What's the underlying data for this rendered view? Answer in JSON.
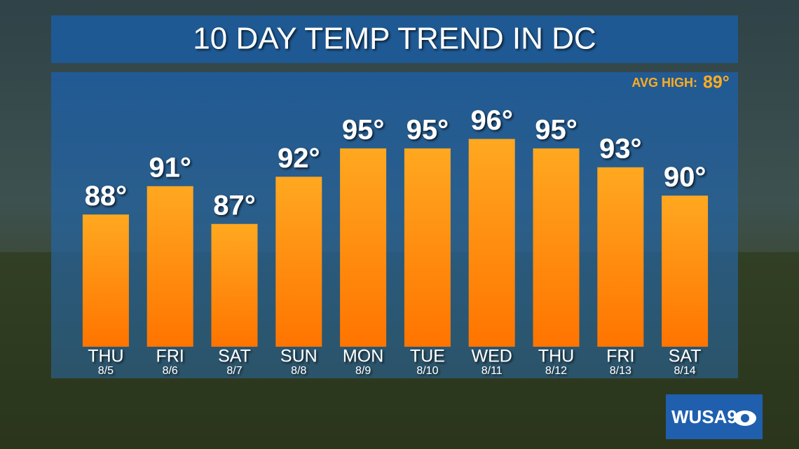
{
  "chart_data": {
    "type": "bar",
    "title": "10 DAY TEMP TREND IN DC",
    "annotation_label": "AVG HIGH:",
    "annotation_value_label": "89°",
    "categories": [
      "THU",
      "FRI",
      "SAT",
      "SUN",
      "MON",
      "TUE",
      "WED",
      "THU",
      "FRI",
      "SAT"
    ],
    "dates": [
      "8/5",
      "8/6",
      "8/7",
      "8/8",
      "8/9",
      "8/10",
      "8/11",
      "8/12",
      "8/13",
      "8/14"
    ],
    "values": [
      88,
      91,
      87,
      92,
      95,
      95,
      96,
      95,
      93,
      90
    ],
    "value_labels": [
      "88°",
      "91°",
      "87°",
      "92°",
      "95°",
      "95°",
      "96°",
      "95°",
      "93°",
      "90°"
    ],
    "color": "#ff8c0a",
    "ylim": [
      74,
      103
    ]
  },
  "logo": "WUSA9"
}
